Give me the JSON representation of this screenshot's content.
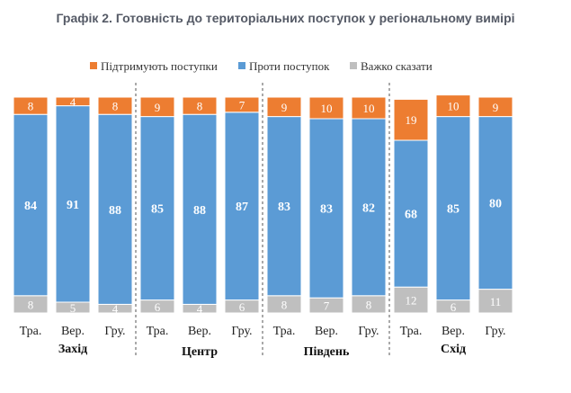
{
  "chart_data": {
    "type": "bar",
    "stacked": true,
    "title": "Графік 2. Готовність до територіальних поступок у регіональному вимірі",
    "legend": {
      "position": "top"
    },
    "series": [
      {
        "name": "Підтримують поступки",
        "color": "#ED7D31",
        "values": [
          8,
          4,
          8,
          9,
          8,
          7,
          9,
          10,
          10,
          19,
          10,
          9
        ]
      },
      {
        "name": "Проти поступок",
        "color": "#5B9BD5",
        "values": [
          84,
          91,
          88,
          85,
          88,
          87,
          83,
          83,
          82,
          68,
          85,
          80
        ]
      },
      {
        "name": "Важко сказати",
        "color": "#BFBFBF",
        "values": [
          8,
          5,
          4,
          6,
          4,
          6,
          8,
          7,
          8,
          12,
          6,
          11
        ]
      }
    ],
    "groups": [
      {
        "name": "Захід",
        "categories": [
          "Тра.",
          "Вер.",
          "Гру."
        ]
      },
      {
        "name": "Центр",
        "categories": [
          "Тра.",
          "Вер.",
          "Гру."
        ]
      },
      {
        "name": "Південь",
        "categories": [
          "Тра.",
          "Вер.",
          "Гру."
        ]
      },
      {
        "name": "Схід",
        "categories": [
          "Тра.",
          "Вер.",
          "Гру."
        ]
      }
    ],
    "ylim": [
      0,
      100
    ],
    "grid": false
  }
}
